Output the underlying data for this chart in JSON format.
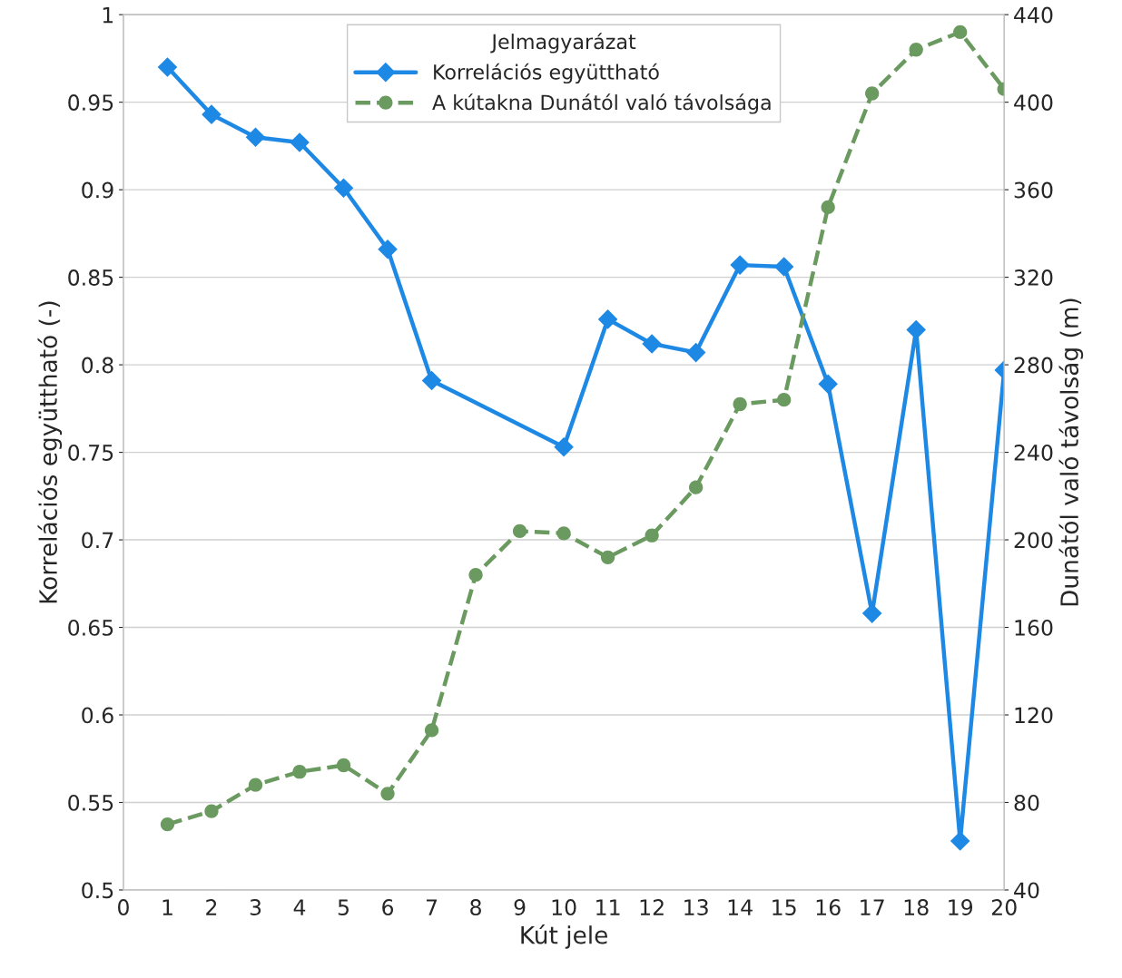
{
  "chart_data": {
    "type": "line",
    "xlabel": "Kút jele",
    "ylabel": "Korrelációs együttható (-)",
    "y2label": "Dunától való távolság (m)",
    "legend_title": "Jelmagyarázat",
    "legend": "top",
    "grid": "y",
    "x": [
      1,
      2,
      3,
      4,
      5,
      6,
      7,
      8,
      9,
      10,
      11,
      12,
      13,
      14,
      15,
      16,
      17,
      18,
      19,
      20
    ],
    "xlim": [
      0,
      20
    ],
    "xticks": [
      0,
      1,
      2,
      3,
      4,
      5,
      6,
      7,
      8,
      9,
      10,
      11,
      12,
      13,
      14,
      15,
      16,
      17,
      18,
      19,
      20
    ],
    "ylim": [
      0.5,
      1
    ],
    "yticks": [
      0.5,
      0.55,
      0.6,
      0.65,
      0.7,
      0.75,
      0.8,
      0.85,
      0.9,
      0.95,
      1
    ],
    "y2lim": [
      40,
      440
    ],
    "y2ticks": [
      40,
      80,
      120,
      160,
      200,
      240,
      280,
      320,
      360,
      400,
      440
    ],
    "series": [
      {
        "name": "Korrelációs együttható",
        "color": "#1e88e5",
        "marker": "diamond",
        "line_style": "solid",
        "x": [
          1,
          2,
          3,
          4,
          5,
          6,
          7,
          10,
          11,
          12,
          13,
          14,
          15,
          16,
          17,
          18,
          19,
          20
        ],
        "values": [
          0.97,
          0.943,
          0.93,
          0.927,
          0.901,
          0.866,
          0.791,
          0.753,
          0.826,
          0.812,
          0.807,
          0.857,
          0.856,
          0.789,
          0.658,
          0.82,
          0.528,
          0.797
        ]
      },
      {
        "name": "A kútakna Dunától való távolsága",
        "color": "#6a9a5f",
        "marker": "circle",
        "line_style": "dashed",
        "axis": "y2",
        "values": [
          70,
          76,
          88,
          94,
          97,
          84,
          113,
          184,
          204,
          203,
          192,
          202,
          224,
          262,
          264,
          352,
          404,
          424,
          432,
          406
        ]
      }
    ]
  }
}
